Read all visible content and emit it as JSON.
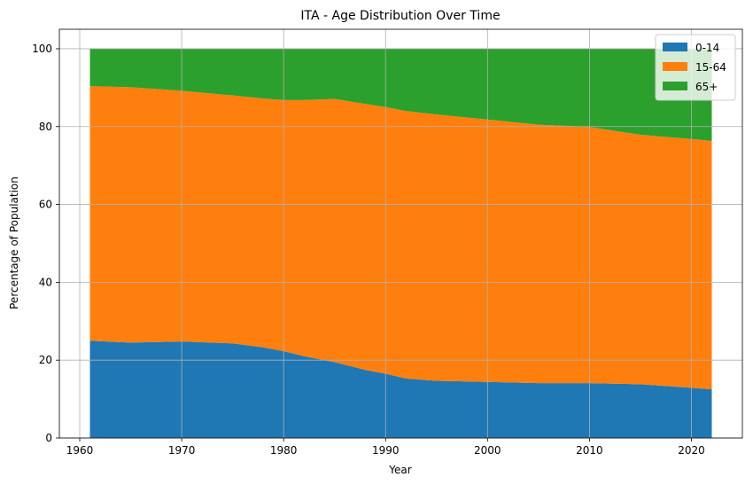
{
  "chart_data": {
    "type": "area",
    "stacked": true,
    "title": "ITA - Age Distribution Over Time",
    "xlabel": "Year",
    "ylabel": "Percentage of Population",
    "xlim": [
      1958,
      2025
    ],
    "ylim": [
      0,
      105
    ],
    "xticks": [
      1960,
      1970,
      1980,
      1990,
      2000,
      2010,
      2020
    ],
    "yticks": [
      0,
      20,
      40,
      60,
      80,
      100
    ],
    "grid": true,
    "legend_position": "top-right",
    "x": [
      1961,
      1965,
      1970,
      1975,
      1978,
      1980,
      1982,
      1985,
      1988,
      1990,
      1992,
      1995,
      2000,
      2005,
      2010,
      2015,
      2020,
      2022
    ],
    "series": [
      {
        "name": "0-14",
        "color": "#1f77b4",
        "values": [
          25.0,
          24.5,
          24.8,
          24.3,
          23.3,
          22.3,
          21.0,
          19.5,
          17.5,
          16.5,
          15.3,
          14.7,
          14.4,
          14.1,
          14.1,
          13.8,
          12.9,
          12.5
        ]
      },
      {
        "name": "15-64",
        "color": "#ff7f0e",
        "values": [
          65.4,
          65.6,
          64.4,
          63.7,
          63.9,
          64.5,
          65.8,
          67.6,
          68.3,
          68.5,
          68.7,
          68.4,
          67.4,
          66.4,
          65.8,
          64.1,
          63.9,
          63.8
        ]
      },
      {
        "name": "65+",
        "color": "#2ca02c",
        "values": [
          9.6,
          9.9,
          10.8,
          12.0,
          12.8,
          13.2,
          13.2,
          12.9,
          14.2,
          15.0,
          16.0,
          16.9,
          18.2,
          19.5,
          20.1,
          22.1,
          23.2,
          23.7
        ]
      }
    ]
  }
}
